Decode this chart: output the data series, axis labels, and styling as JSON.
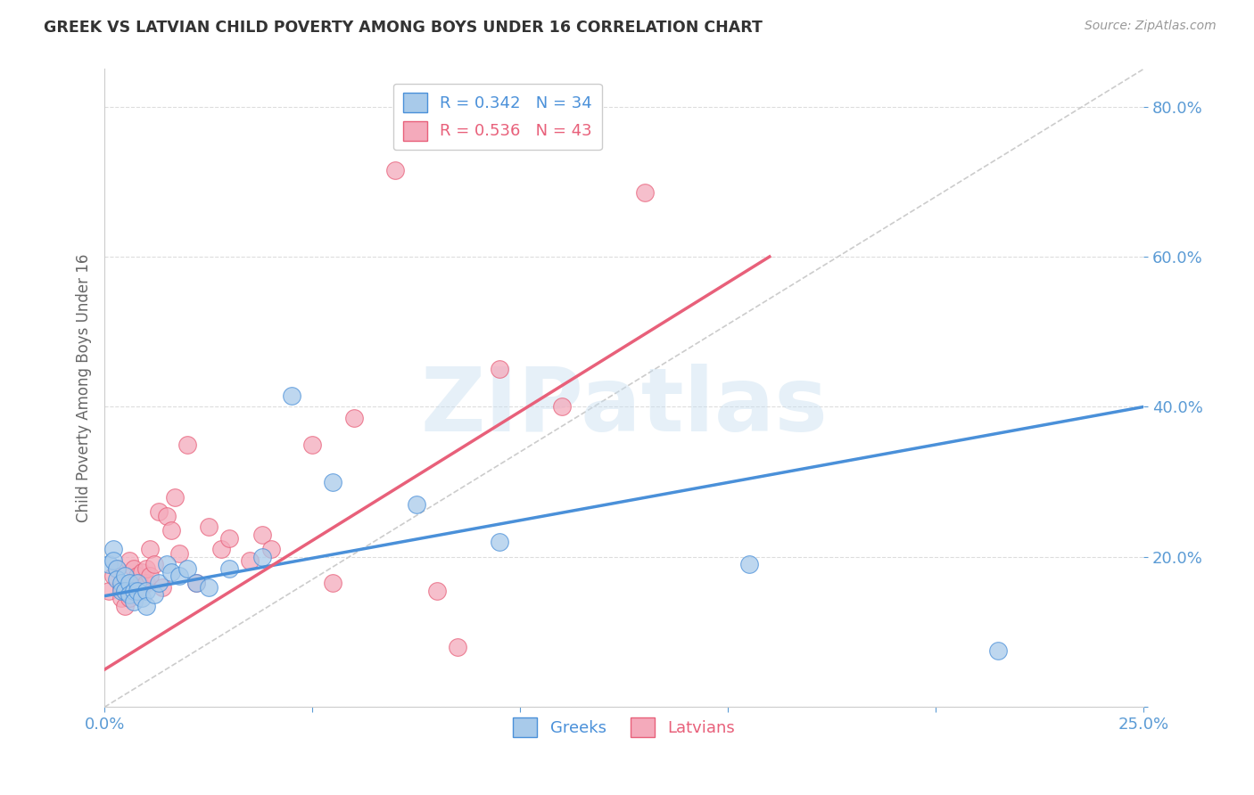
{
  "title": "GREEK VS LATVIAN CHILD POVERTY AMONG BOYS UNDER 16 CORRELATION CHART",
  "source": "Source: ZipAtlas.com",
  "ylabel": "Child Poverty Among Boys Under 16",
  "xlim": [
    0.0,
    0.25
  ],
  "ylim": [
    0.0,
    0.85
  ],
  "xticks": [
    0.0,
    0.05,
    0.1,
    0.15,
    0.2,
    0.25
  ],
  "yticks": [
    0.0,
    0.2,
    0.4,
    0.6,
    0.8
  ],
  "ytick_labels": [
    "",
    "20.0%",
    "40.0%",
    "60.0%",
    "80.0%"
  ],
  "xtick_labels": [
    "0.0%",
    "",
    "",
    "",
    "",
    "25.0%"
  ],
  "greek_R": "0.342",
  "greek_N": "34",
  "latvian_R": "0.536",
  "latvian_N": "43",
  "greek_color": "#A8CAEA",
  "latvian_color": "#F4AABB",
  "greek_line_color": "#4A90D9",
  "latvian_line_color": "#E8607A",
  "diagonal_color": "#CCCCCC",
  "watermark_text": "ZIPatlas",
  "background_color": "#FFFFFF",
  "grid_color": "#DDDDDD",
  "tick_color": "#5B9BD5",
  "greek_line_x0": 0.0,
  "greek_line_y0": 0.148,
  "greek_line_x1": 0.25,
  "greek_line_y1": 0.4,
  "latvian_line_x0": 0.0,
  "latvian_line_y0": 0.05,
  "latvian_line_x1": 0.16,
  "latvian_line_y1": 0.6,
  "greek_points_x": [
    0.001,
    0.002,
    0.002,
    0.003,
    0.003,
    0.004,
    0.004,
    0.005,
    0.005,
    0.006,
    0.006,
    0.007,
    0.007,
    0.008,
    0.008,
    0.009,
    0.01,
    0.01,
    0.012,
    0.013,
    0.015,
    0.016,
    0.018,
    0.02,
    0.022,
    0.025,
    0.03,
    0.038,
    0.045,
    0.055,
    0.075,
    0.095,
    0.155,
    0.215
  ],
  "greek_points_y": [
    0.19,
    0.21,
    0.195,
    0.185,
    0.17,
    0.165,
    0.155,
    0.175,
    0.155,
    0.165,
    0.15,
    0.155,
    0.14,
    0.165,
    0.155,
    0.145,
    0.155,
    0.135,
    0.15,
    0.165,
    0.19,
    0.18,
    0.175,
    0.185,
    0.165,
    0.16,
    0.185,
    0.2,
    0.415,
    0.3,
    0.27,
    0.22,
    0.19,
    0.075
  ],
  "latvian_points_x": [
    0.001,
    0.002,
    0.003,
    0.004,
    0.004,
    0.005,
    0.005,
    0.006,
    0.006,
    0.007,
    0.007,
    0.008,
    0.008,
    0.009,
    0.009,
    0.01,
    0.01,
    0.011,
    0.011,
    0.012,
    0.013,
    0.014,
    0.015,
    0.016,
    0.017,
    0.018,
    0.02,
    0.022,
    0.025,
    0.028,
    0.03,
    0.035,
    0.038,
    0.04,
    0.05,
    0.055,
    0.06,
    0.07,
    0.08,
    0.085,
    0.095,
    0.11,
    0.13
  ],
  "latvian_points_y": [
    0.155,
    0.175,
    0.185,
    0.16,
    0.145,
    0.155,
    0.135,
    0.145,
    0.195,
    0.185,
    0.155,
    0.175,
    0.16,
    0.18,
    0.16,
    0.165,
    0.185,
    0.175,
    0.21,
    0.19,
    0.26,
    0.16,
    0.255,
    0.235,
    0.28,
    0.205,
    0.35,
    0.165,
    0.24,
    0.21,
    0.225,
    0.195,
    0.23,
    0.21,
    0.35,
    0.165,
    0.385,
    0.715,
    0.155,
    0.08,
    0.45,
    0.4,
    0.685
  ]
}
